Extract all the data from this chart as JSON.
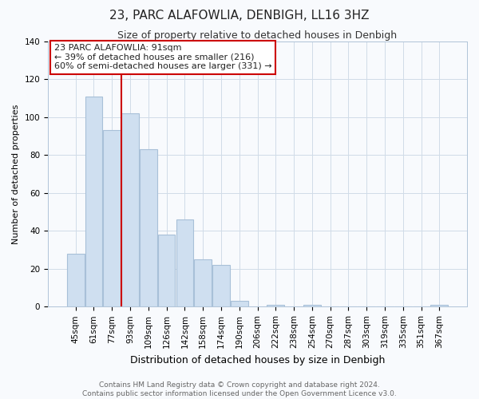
{
  "title": "23, PARC ALAFOWLIA, DENBIGH, LL16 3HZ",
  "subtitle": "Size of property relative to detached houses in Denbigh",
  "xlabel": "Distribution of detached houses by size in Denbigh",
  "ylabel": "Number of detached properties",
  "bar_labels": [
    "45sqm",
    "61sqm",
    "77sqm",
    "93sqm",
    "109sqm",
    "126sqm",
    "142sqm",
    "158sqm",
    "174sqm",
    "190sqm",
    "206sqm",
    "222sqm",
    "238sqm",
    "254sqm",
    "270sqm",
    "287sqm",
    "303sqm",
    "319sqm",
    "335sqm",
    "351sqm",
    "367sqm"
  ],
  "bar_values": [
    28,
    111,
    93,
    102,
    83,
    38,
    46,
    25,
    22,
    3,
    0,
    1,
    0,
    1,
    0,
    0,
    0,
    0,
    0,
    0,
    1
  ],
  "bar_color": "#cfdff0",
  "bar_edge_color": "#a8c0d8",
  "vline_x_index": 2.5,
  "vline_color": "#cc0000",
  "ylim": [
    0,
    140
  ],
  "yticks": [
    0,
    20,
    40,
    60,
    80,
    100,
    120,
    140
  ],
  "annotation_line1": "23 PARC ALAFOWLIA: 91sqm",
  "annotation_line2": "← 39% of detached houses are smaller (216)",
  "annotation_line3": "60% of semi-detached houses are larger (331) →",
  "footer_line1": "Contains HM Land Registry data © Crown copyright and database right 2024.",
  "footer_line2": "Contains public sector information licensed under the Open Government Licence v3.0.",
  "background_color": "#f8fafd",
  "grid_color": "#d0dce8",
  "title_fontsize": 11,
  "subtitle_fontsize": 9,
  "ylabel_fontsize": 8,
  "xlabel_fontsize": 9,
  "tick_fontsize": 7.5,
  "annot_fontsize": 8,
  "footer_fontsize": 6.5
}
